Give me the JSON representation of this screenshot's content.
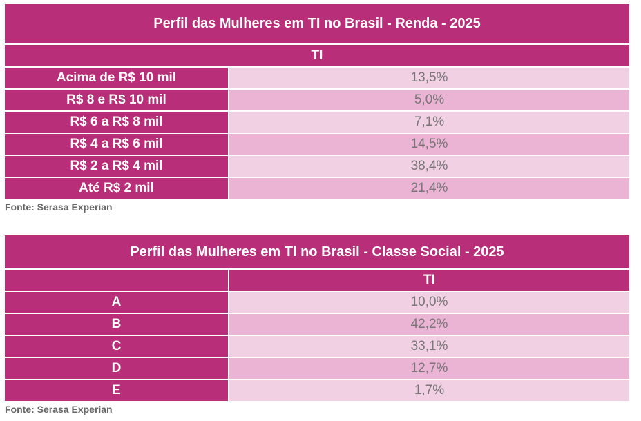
{
  "table1": {
    "title": "Perfil das Mulheres em TI no Brasil - Renda - 2025",
    "column": "TI",
    "rows": [
      {
        "label": "Acima de R$ 10 mil",
        "value": "13,5%"
      },
      {
        "label": "R$ 8 e R$ 10 mil",
        "value": "5,0%"
      },
      {
        "label": "R$ 6 a R$ 8 mil",
        "value": "7,1%"
      },
      {
        "label": "R$ 4 a R$ 6 mil",
        "value": "14,5%"
      },
      {
        "label": "R$ 2 a R$ 4 mil",
        "value": "38,4%"
      },
      {
        "label": "Até R$ 2 mil",
        "value": "21,4%"
      }
    ],
    "source": "Fonte: Serasa Experian"
  },
  "table2": {
    "title": "Perfil das Mulheres em TI no Brasil - Classe Social - 2025",
    "column": "TI",
    "rows": [
      {
        "label": "A",
        "value": "10,0%"
      },
      {
        "label": "B",
        "value": "42,2%"
      },
      {
        "label": "C",
        "value": "33,1%"
      },
      {
        "label": "D",
        "value": "12,7%"
      },
      {
        "label": "E",
        "value": "1,7%"
      }
    ],
    "source": "Fonte: Serasa Experian"
  },
  "colors": {
    "header": "#B82E78",
    "row_light": "#F2D0E4",
    "row_dark": "#EBB4D4"
  }
}
